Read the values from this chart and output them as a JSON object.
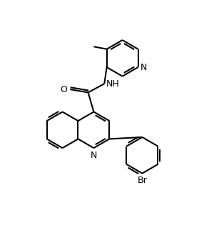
{
  "bg_color": "#ffffff",
  "lw": 1.5,
  "fs": 9,
  "figsize": [
    2.93,
    3.33
  ],
  "dpi": 100,
  "xlim": [
    0.0,
    5.8
  ],
  "ylim": [
    -0.3,
    7.2
  ],
  "r": 0.58
}
